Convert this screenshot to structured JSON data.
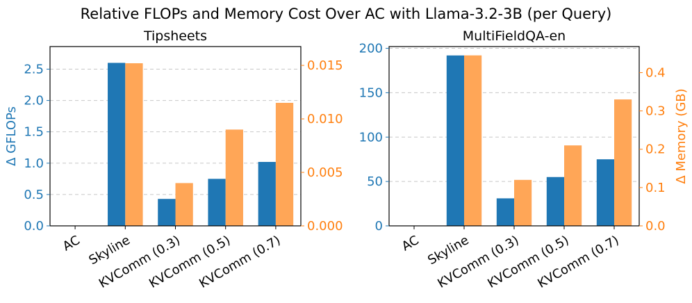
{
  "suptitle": "Relative FLOPs and Memory Cost Over AC with Llama-3.2-3B (per Query)",
  "colors": {
    "flops": "#1f77b4",
    "memory": "#ff7f0e",
    "memory_bar": "#ffa657",
    "grid": "#b0b0b0",
    "text": "#000000"
  },
  "chart_data": [
    {
      "type": "bar",
      "title": "Tipsheets",
      "categories": [
        "AC",
        "Skyline",
        "KVComm (0.3)",
        "KVComm (0.5)",
        "KVComm (0.7)"
      ],
      "series": [
        {
          "name": "Δ GFLOPs",
          "axis": "left",
          "values": [
            0,
            2.6,
            0.43,
            0.75,
            1.02
          ]
        },
        {
          "name": "Δ Memory (GB)",
          "axis": "right",
          "values": [
            0,
            0.0152,
            0.004,
            0.009,
            0.0115
          ]
        }
      ],
      "ylabel": "Δ GFLOPs",
      "ylabel_right": "",
      "ylim": [
        0,
        2.86
      ],
      "ylim_right": [
        0,
        0.01676
      ],
      "yticks": [
        0.0,
        0.5,
        1.0,
        1.5,
        2.0,
        2.5
      ],
      "ytick_labels": [
        "0.0",
        "0.5",
        "1.0",
        "1.5",
        "2.0",
        "2.5"
      ],
      "yticks_right": [
        0.0,
        0.005,
        0.01,
        0.015
      ],
      "ytick_labels_right": [
        "0.000",
        "0.005",
        "0.010",
        "0.015"
      ],
      "grid": true
    },
    {
      "type": "bar",
      "title": "MultiFieldQA-en",
      "categories": [
        "AC",
        "Skyline",
        "KVComm (0.3)",
        "KVComm (0.5)",
        "KVComm (0.7)"
      ],
      "series": [
        {
          "name": "Δ GFLOPs",
          "axis": "left",
          "values": [
            0,
            192,
            31,
            55,
            75
          ]
        },
        {
          "name": "Δ Memory (GB)",
          "axis": "right",
          "values": [
            0,
            0.445,
            0.12,
            0.21,
            0.33
          ]
        }
      ],
      "ylabel": "",
      "ylabel_right": "Δ Memory (GB)",
      "ylim": [
        0,
        202
      ],
      "ylim_right": [
        0,
        0.468
      ],
      "yticks": [
        0,
        50,
        100,
        150,
        200
      ],
      "ytick_labels": [
        "0",
        "50",
        "100",
        "150",
        "200"
      ],
      "yticks_right": [
        0.0,
        0.1,
        0.2,
        0.3,
        0.4
      ],
      "ytick_labels_right": [
        "0.0",
        "0.1",
        "0.2",
        "0.3",
        "0.4"
      ],
      "grid": true
    }
  ]
}
